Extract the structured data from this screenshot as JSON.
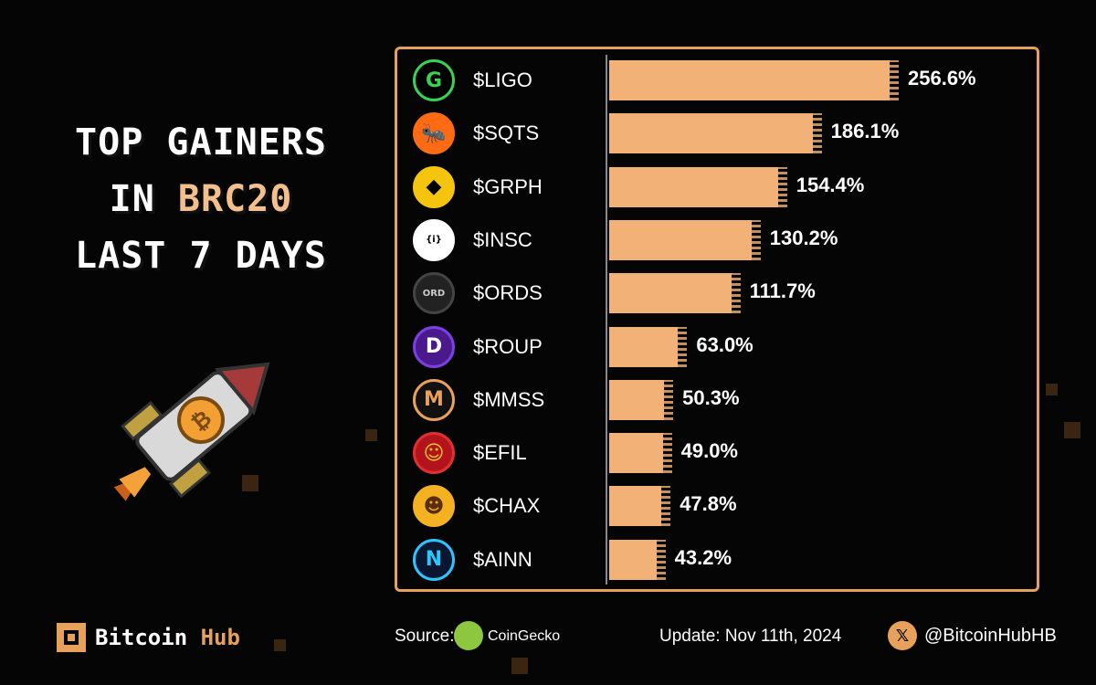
{
  "title": {
    "line1": "TOP GAINERS",
    "line2_prefix": "IN ",
    "line2_highlight": "BRC20",
    "line3": "LAST 7 DAYS"
  },
  "colors": {
    "accent": "#f2b277",
    "border": "#e8a15a",
    "background": "#050505"
  },
  "chart_data": {
    "type": "bar",
    "orientation": "horizontal",
    "categories": [
      "$LIGO",
      "$SQTS",
      "$GRPH",
      "$INSC",
      "$ORDS",
      "$ROUP",
      "$MMSS",
      "$EFIL",
      "$CHAX",
      "$AINN"
    ],
    "values": [
      256.6,
      186.1,
      154.4,
      130.2,
      111.7,
      63.0,
      50.3,
      49.0,
      47.8,
      43.2
    ],
    "value_labels": [
      "256.6%",
      "186.1%",
      "154.4%",
      "130.2%",
      "111.7%",
      "63.0%",
      "50.3%",
      "49.0%",
      "47.8%",
      "43.2%"
    ],
    "unit": "%",
    "xlim": [
      0,
      256.6
    ]
  },
  "logos": [
    {
      "icon": "ligo-icon",
      "text": "G",
      "bg": "#000000",
      "fg": "#39d353",
      "ring": "#39d353"
    },
    {
      "icon": "sqts-icon",
      "text": "🐜",
      "bg": "#ff6a13",
      "fg": "#ffffff",
      "ring": "#ff6a13"
    },
    {
      "icon": "grph-icon",
      "text": "◆",
      "bg": "#f4c40f",
      "fg": "#000000",
      "ring": "#f4c40f"
    },
    {
      "icon": "insc-icon",
      "text": "{i}",
      "bg": "#ffffff",
      "fg": "#000000",
      "ring": "#ffffff"
    },
    {
      "icon": "ords-icon",
      "text": "ORD",
      "bg": "#222222",
      "fg": "#cccccc",
      "ring": "#444444"
    },
    {
      "icon": "roup-icon",
      "text": "D",
      "bg": "#4a1a8c",
      "fg": "#ffffff",
      "ring": "#7b3fe4"
    },
    {
      "icon": "mmss-icon",
      "text": "M",
      "bg": "#111111",
      "fg": "#e8a15a",
      "ring": "#e8a15a"
    },
    {
      "icon": "efil-icon",
      "text": "☺",
      "bg": "#b3141c",
      "fg": "#f3c72a",
      "ring": "#e23030"
    },
    {
      "icon": "chax-icon",
      "text": "☻",
      "bg": "#f4b223",
      "fg": "#5a2d0c",
      "ring": "#f4b223"
    },
    {
      "icon": "ainn-icon",
      "text": "N",
      "bg": "#0b1630",
      "fg": "#29c6ff",
      "ring": "#29c6ff"
    }
  ],
  "footer": {
    "brand": "Bitcoin",
    "brand_highlight": "Hub",
    "source_label": "Source:",
    "source_name": "CoinGecko",
    "update": "Update: Nov 11th, 2024",
    "handle": "@BitcoinHubHB",
    "x_glyph": "𝕏"
  }
}
